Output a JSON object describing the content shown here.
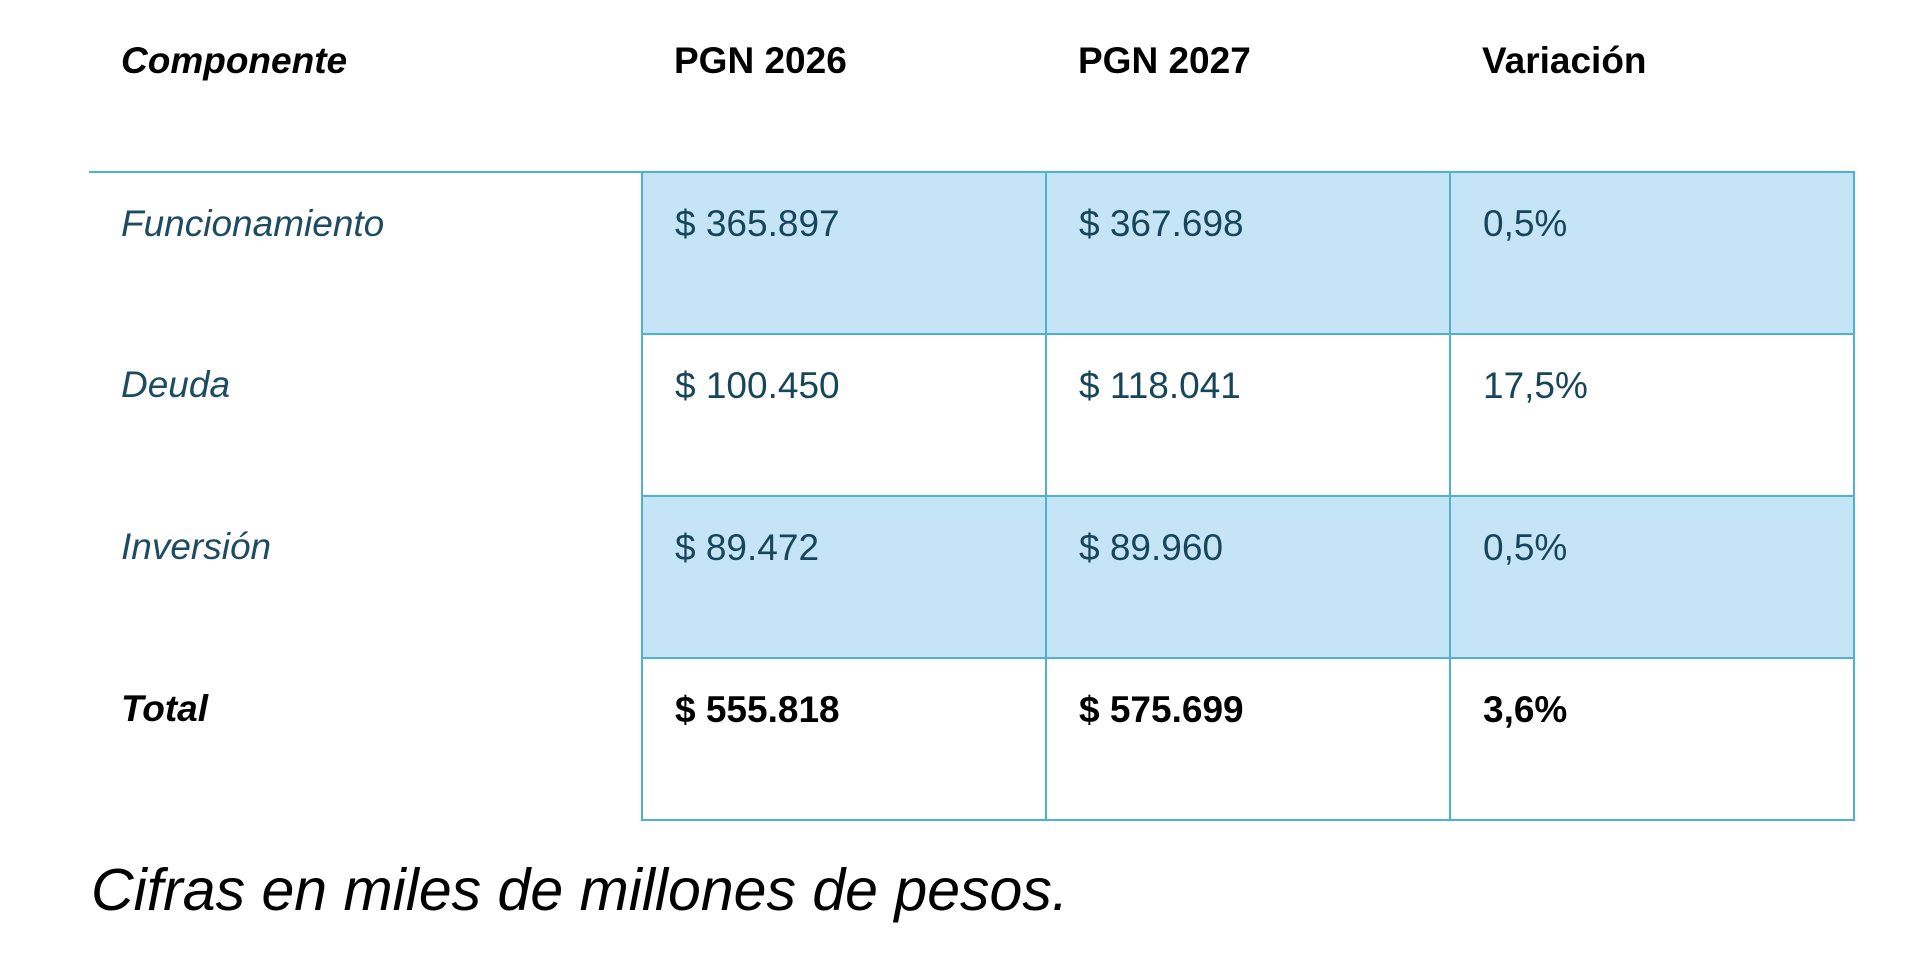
{
  "table": {
    "headers": [
      "Componente",
      "PGN 2026",
      "PGN 2027",
      "Variación"
    ],
    "rows": [
      {
        "label": "Funcionamiento",
        "pgn_2026": "$ 365.897",
        "pgn_2027": "$ 367.698",
        "variacion": "0,5%"
      },
      {
        "label": "Deuda",
        "pgn_2026": "$ 100.450",
        "pgn_2027": "$ 118.041",
        "variacion": "17,5%"
      },
      {
        "label": "Inversión",
        "pgn_2026": "$ 89.472",
        "pgn_2027": "$ 89.960",
        "variacion": "0,5%"
      },
      {
        "label": "Total",
        "pgn_2026": "$ 555.818",
        "pgn_2027": "$ 575.699",
        "variacion": "3,6%"
      }
    ]
  },
  "note": "Cifras en miles de millones de pesos.",
  "colors": {
    "border": "#4fb0d6",
    "shaded_fill": "#c5e5f7",
    "body_text": "#17455a"
  }
}
